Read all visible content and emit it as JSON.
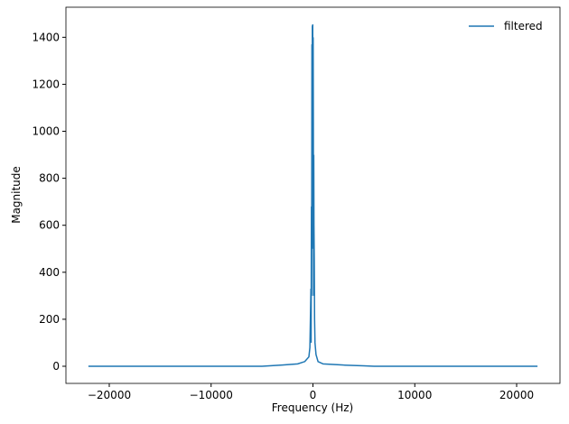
{
  "chart_data": {
    "type": "line",
    "x_label": "Frequency (Hz)",
    "y_label": "Magnitude",
    "legend": "upper right",
    "x": [
      -22050,
      -5000,
      -3000,
      -1500,
      -800,
      -400,
      -300,
      -250,
      -200,
      -180,
      -150,
      -130,
      -100,
      -80,
      -60,
      -40,
      -20,
      0,
      20,
      40,
      60,
      80,
      100,
      130,
      160,
      200,
      300,
      500,
      1000,
      3000,
      5000,
      6000,
      22050
    ],
    "series": [
      {
        "name": "filtered",
        "color": "#1f77b4",
        "values": [
          0,
          0,
          5,
          10,
          20,
          40,
          80,
          200,
          330,
          100,
          680,
          300,
          1370,
          500,
          1450,
          800,
          1455,
          600,
          1400,
          1040,
          300,
          900,
          600,
          450,
          200,
          100,
          50,
          20,
          10,
          5,
          2,
          0,
          0
        ]
      }
    ],
    "xlim": [
      -24255,
      24255
    ],
    "xticks": [
      {
        "value": -20000,
        "label": "−20000"
      },
      {
        "value": -10000,
        "label": "−10000"
      },
      0,
      10000,
      20000
    ],
    "ylim": [
      -73,
      1528
    ],
    "yticks": [
      0,
      200,
      400,
      600,
      800,
      1000,
      1200,
      1400
    ]
  }
}
